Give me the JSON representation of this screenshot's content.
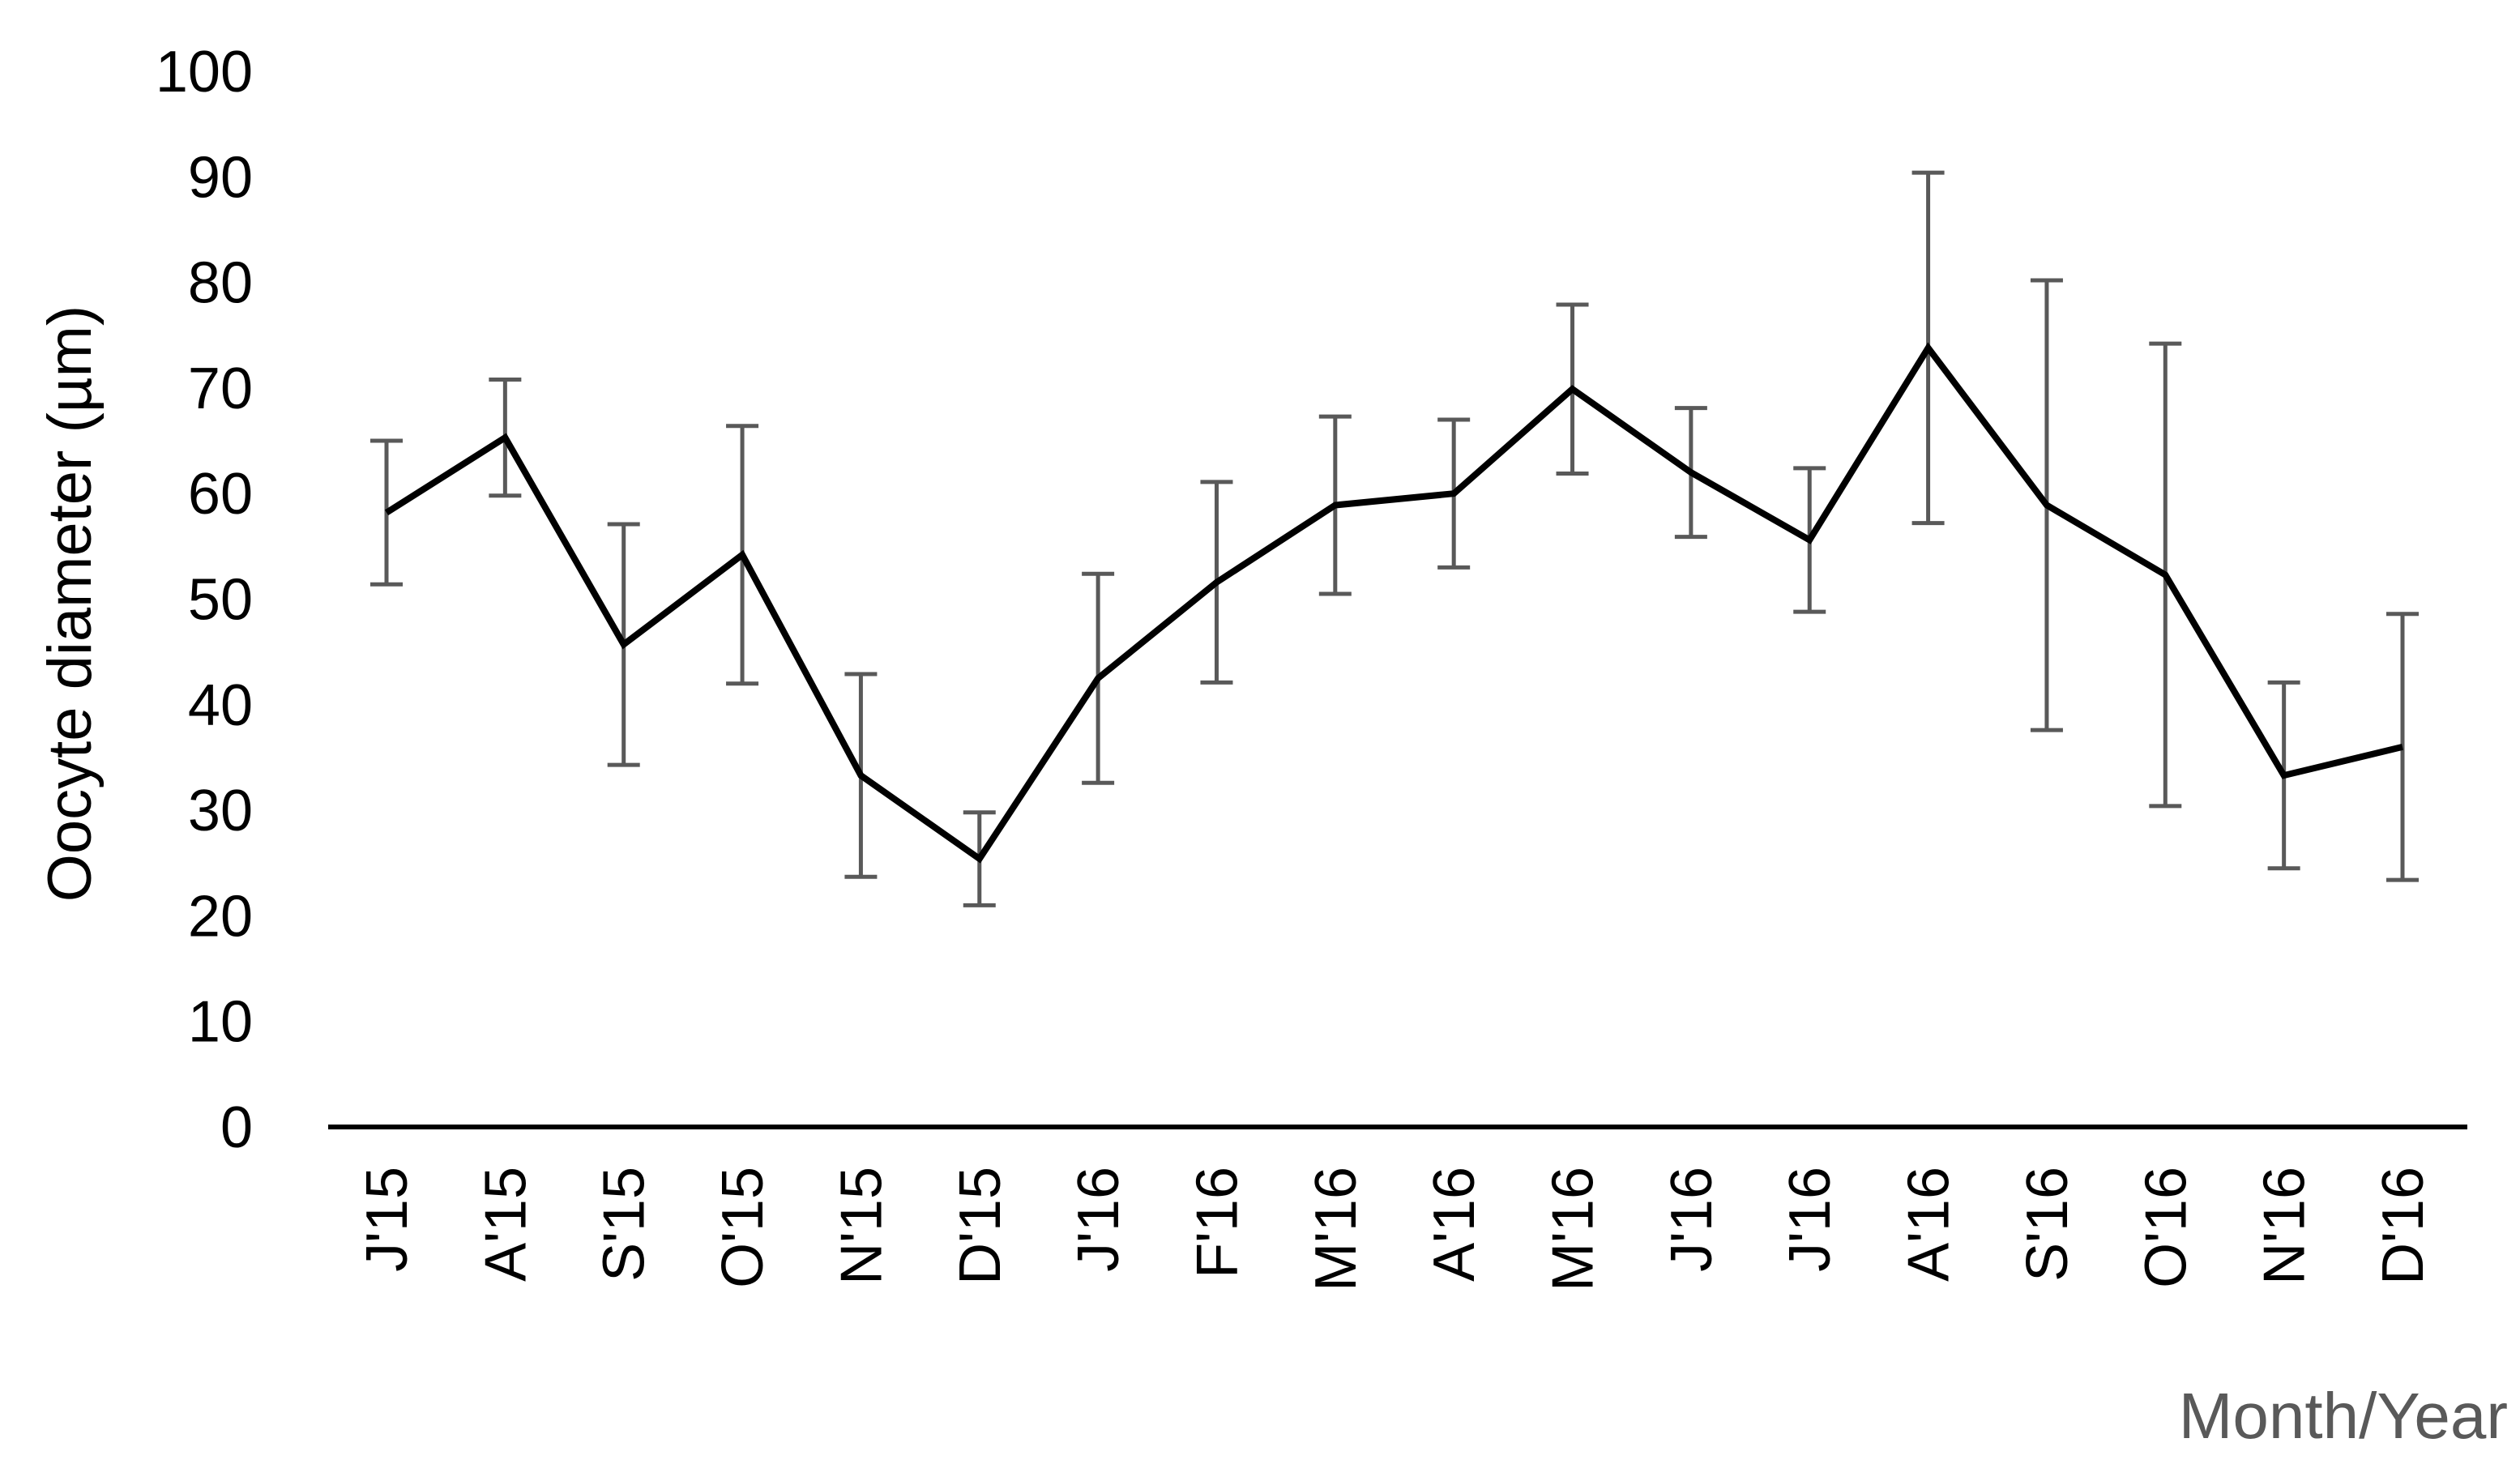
{
  "chart_data": {
    "type": "line",
    "title": "",
    "xlabel": "Month/Year",
    "ylabel": "Oocyte diameter (µm)",
    "ylim": [
      0,
      100
    ],
    "yticks": [
      "0",
      "10",
      "20",
      "30",
      "40",
      "50",
      "60",
      "70",
      "80",
      "90",
      "100"
    ],
    "grid": false,
    "legend": "none",
    "categories": [
      "J'15",
      "A'15",
      "S'15",
      "O'15",
      "N'15",
      "D'15",
      "J'16",
      "F'16",
      "M'16",
      "A'16",
      "M'16",
      "J'16",
      "J'16",
      "A'16",
      "S'16",
      "O'16",
      "N'16",
      "D'16"
    ],
    "series": [
      {
        "values": [
          58.2,
          65.3,
          45.7,
          54.2,
          33.3,
          25.4,
          42.5,
          51.6,
          58.9,
          60.0,
          69.9,
          62.0,
          55.6,
          73.8,
          58.9,
          52.3,
          33.3,
          36.0
        ],
        "error": [
          6.8,
          5.5,
          11.4,
          12.2,
          9.6,
          4.4,
          9.9,
          9.5,
          8.4,
          7.0,
          8.0,
          6.1,
          6.8,
          16.6,
          21.3,
          21.9,
          8.8,
          12.6
        ],
        "color": "#000000",
        "error_color": "#595959"
      }
    ]
  }
}
